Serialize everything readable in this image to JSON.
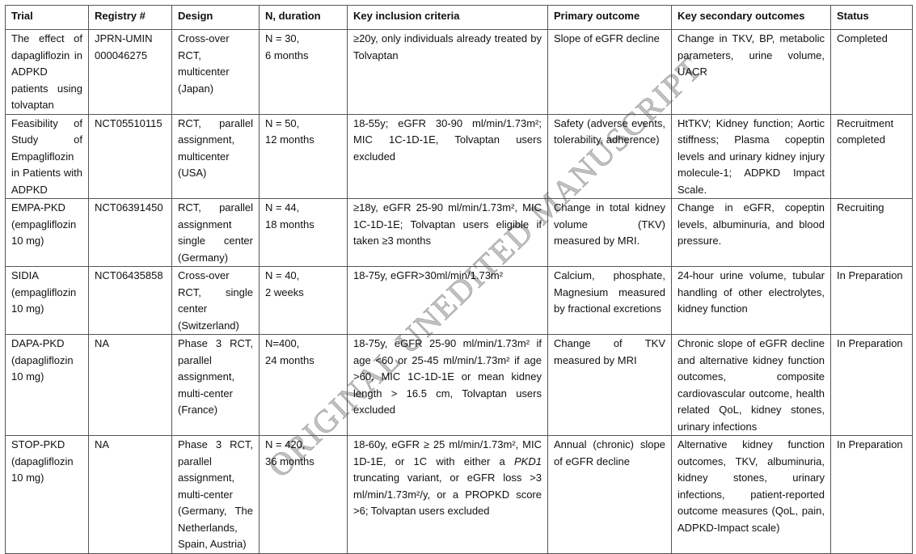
{
  "headers": [
    "Trial",
    "Registry #",
    "Design",
    "N, duration",
    "Key inclusion criteria",
    "Primary outcome",
    "Key secondary outcomes",
    "Status"
  ],
  "rows": [
    {
      "trial": "The effect of dapagliflozin in ADPKD patients using tolvaptan",
      "registry": "JPRN-UMIN 000046275",
      "design": "Cross-over RCT, multicenter (Japan)",
      "n": "N = 30,",
      "duration": "6 months",
      "criteria": "≥20y, only individuals already treated by Tolvaptan",
      "primary": "Slope of eGFR decline",
      "secondary": "Change in TKV, BP, metabolic parameters, urine volume, UACR",
      "status": "Completed"
    },
    {
      "trial": "Feasibility of Study of Empagliflozin in Patients with ADPKD",
      "registry": "NCT05510115",
      "design": "RCT, parallel assignment, multicenter (USA)",
      "n": "N = 50,",
      "duration": "12 months",
      "criteria": "18-55y; eGFR 30-90 ml/min/1.73m²; MIC 1C-1D-1E, Tolvaptan users excluded",
      "primary": "Safety (adverse events, tolerability, adherence)",
      "secondary": "HtTKV; Kidney function; Aortic stiffness; Plasma copeptin levels and urinary kidney injury molecule-1; ADPKD Impact Scale.",
      "status": "Recruitment completed"
    },
    {
      "trial": "EMPA-PKD (empagliflozin 10 mg)",
      "registry": "NCT06391450",
      "design": "RCT, parallel assignment single center (Germany)",
      "n": "N = 44,",
      "duration": "18 months",
      "criteria": "≥18y, eGFR 25-90 ml/min/1.73m², MIC 1C-1D-1E; Tolvaptan users eligible if taken ≥3 months",
      "primary": "Change in total kidney volume (TKV) measured by MRI.",
      "secondary": "Change in eGFR, copeptin levels, albuminuria, and blood pressure.",
      "status": "Recruiting"
    },
    {
      "trial": "SIDIA (empagliflozin 10 mg)",
      "registry": "NCT06435858",
      "design": "Cross-over RCT, single center (Switzerland)",
      "n": "N = 40,",
      "duration": "2 weeks",
      "criteria": "18-75y, eGFR>30ml/min/1.73m²",
      "primary": "Calcium, phosphate, Magnesium measured by fractional excretions",
      "secondary": "24-hour urine volume, tubular handling of other electrolytes, kidney function",
      "status": "In Preparation"
    },
    {
      "trial": "DAPA-PKD (dapagliflozin 10 mg)",
      "registry": "NA",
      "design": "Phase 3 RCT, parallel assignment, multi-center (France)",
      "n": "N=400,",
      "duration": "24 months",
      "criteria": "18-75y, eGFR 25-90 ml/min/1.73m² if age <60 or 25-45 ml/min/1.73m² if age >60, MIC 1C-1D-1E or mean kidney length > 16.5 cm, Tolvaptan users excluded",
      "primary": "Change of TKV measured by MRI",
      "secondary": "Chronic slope of eGFR decline and alternative kidney function outcomes, composite cardiovascular outcome, health related QoL, kidney stones, urinary infections",
      "status": "In Preparation"
    },
    {
      "trial": "STOP-PKD (dapagliflozin 10 mg)",
      "registry": "NA",
      "design": "Phase 3 RCT, parallel assignment, multi-center (Germany, The Netherlands, Spain, Austria)",
      "n": "N = 420,",
      "duration": "36 months",
      "criteria_a": "18-60y, eGFR ≥ 25 ml/min/1.73m², MIC 1D-1E, or 1C with either a",
      "criteria_italic": "PKD1",
      "criteria_b": "truncating variant, or eGFR loss >3 ml/min/1.73m²/y, or a PROPKD score >6; Tolvaptan users excluded",
      "primary": "Annual (chronic) slope of eGFR decline",
      "secondary": "Alternative kidney function outcomes, TKV, albuminuria, kidney stones, urinary infections, patient-reported outcome measures (QoL, pain, ADPKD-Impact scale)",
      "status": "In Preparation"
    }
  ],
  "watermark": "ORIGINAL UNEDITED MANUSCRIPT"
}
